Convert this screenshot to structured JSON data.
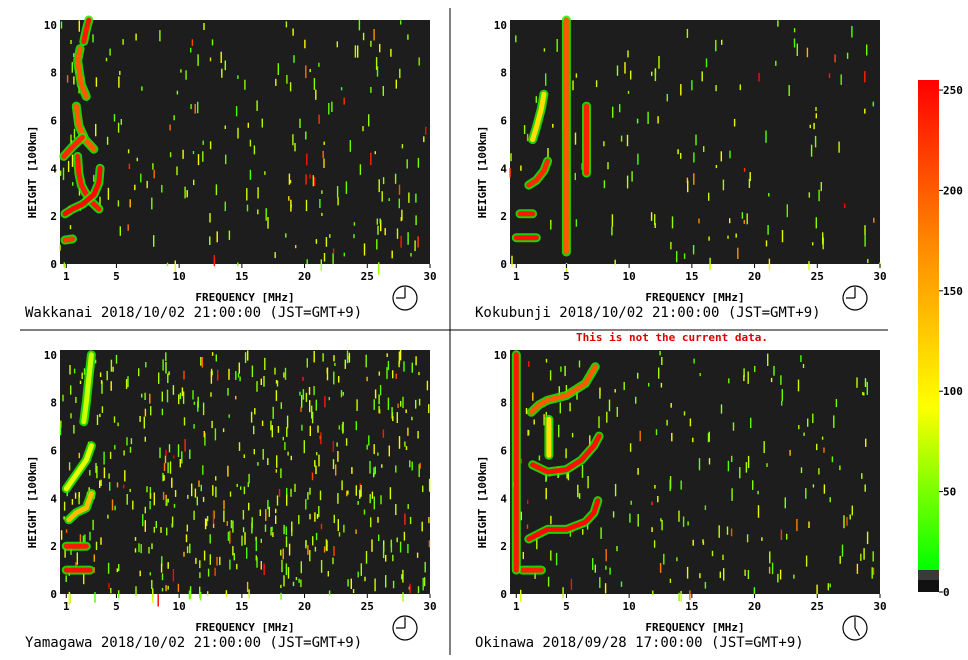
{
  "warning": "This is not the current data.",
  "colorbar": {
    "ticks": [
      0,
      50,
      100,
      150,
      200,
      250
    ],
    "range": [
      0,
      255
    ],
    "colors": [
      "#000000",
      "#00ff00",
      "#ffff00",
      "#ff8800",
      "#ff0000"
    ]
  },
  "chart_data": [
    {
      "type": "heatmap",
      "station": "Wakkanai",
      "caption": "Wakkanai 2018/10/02 21:00:00 (JST=GMT+9)",
      "xlabel": "FREQUENCY [MHz]",
      "ylabel": "HEIGHT [100km]",
      "xlim": [
        0.5,
        30
      ],
      "ylim": [
        0,
        10.2
      ],
      "xticks": [
        1,
        5,
        10,
        15,
        20,
        25,
        30
      ],
      "yticks": [
        0,
        2,
        4,
        6,
        8,
        10
      ],
      "clock_hour": 21,
      "noise_density": 0.35,
      "traces": [
        {
          "points": [
            [
              3.6,
              2.3
            ],
            [
              3.0,
              2.6
            ],
            [
              2.5,
              3.0
            ],
            [
              2.2,
              3.3
            ],
            [
              2.0,
              3.8
            ],
            [
              1.9,
              4.5
            ]
          ],
          "level": 240
        },
        {
          "points": [
            [
              0.9,
              2.1
            ],
            [
              1.5,
              2.3
            ],
            [
              2.3,
              2.5
            ],
            [
              3.2,
              2.9
            ],
            [
              3.6,
              3.4
            ],
            [
              3.7,
              4.0
            ]
          ],
          "level": 250
        },
        {
          "points": [
            [
              3.2,
              4.8
            ],
            [
              2.5,
              5.2
            ],
            [
              2.0,
              5.8
            ],
            [
              1.8,
              6.6
            ]
          ],
          "level": 200
        },
        {
          "points": [
            [
              0.8,
              4.5
            ],
            [
              1.5,
              4.9
            ],
            [
              2.3,
              5.3
            ]
          ],
          "level": 230
        },
        {
          "points": [
            [
              2.6,
              7.0
            ],
            [
              2.2,
              7.5
            ],
            [
              1.9,
              8.5
            ],
            [
              2.1,
              9.0
            ]
          ],
          "level": 200
        },
        {
          "points": [
            [
              2.4,
              9.3
            ],
            [
              2.6,
              9.8
            ],
            [
              2.8,
              10.2
            ]
          ],
          "level": 240
        },
        {
          "points": [
            [
              0.9,
              1.0
            ],
            [
              1.5,
              1.05
            ]
          ],
          "level": 220
        }
      ]
    },
    {
      "type": "heatmap",
      "station": "Kokubunji",
      "caption": "Kokubunji 2018/10/02 21:00:00 (JST=GMT+9)",
      "xlabel": "FREQUENCY [MHz]",
      "ylabel": "HEIGHT [100km]",
      "xlim": [
        0.5,
        30
      ],
      "ylim": [
        0,
        10.2
      ],
      "xticks": [
        1,
        5,
        10,
        15,
        20,
        25,
        30
      ],
      "yticks": [
        0,
        2,
        4,
        6,
        8,
        10
      ],
      "clock_hour": 21,
      "noise_density": 0.22,
      "traces": [
        {
          "points": [
            [
              1.0,
              1.1
            ],
            [
              2.6,
              1.1
            ]
          ],
          "level": 245
        },
        {
          "points": [
            [
              1.3,
              2.1
            ],
            [
              2.3,
              2.1
            ]
          ],
          "level": 240
        },
        {
          "points": [
            [
              2.0,
              3.3
            ],
            [
              2.6,
              3.5
            ],
            [
              3.2,
              3.9
            ],
            [
              3.5,
              4.3
            ]
          ],
          "level": 230
        },
        {
          "points": [
            [
              2.3,
              5.2
            ],
            [
              2.6,
              5.7
            ],
            [
              3.0,
              6.5
            ],
            [
              3.2,
              7.1
            ]
          ],
          "level": 120
        },
        {
          "points": [
            [
              5.0,
              10.2
            ],
            [
              5.0,
              0.5
            ]
          ],
          "level": 200
        },
        {
          "points": [
            [
              6.6,
              6.6
            ],
            [
              6.6,
              3.8
            ]
          ],
          "level": 235
        }
      ]
    },
    {
      "type": "heatmap",
      "station": "Yamagawa",
      "caption": "Yamagawa 2018/10/02 21:00:00 (JST=GMT+9)",
      "xlabel": "FREQUENCY [MHz]",
      "ylabel": "HEIGHT [100km]",
      "xlim": [
        0.5,
        30
      ],
      "ylim": [
        0,
        10.2
      ],
      "xticks": [
        1,
        5,
        10,
        15,
        20,
        25,
        30
      ],
      "yticks": [
        0,
        2,
        4,
        6,
        8,
        10
      ],
      "clock_hour": 21,
      "noise_density": 0.85,
      "traces": [
        {
          "points": [
            [
              1.0,
              1.0
            ],
            [
              2.9,
              1.0
            ]
          ],
          "level": 245
        },
        {
          "points": [
            [
              1.0,
              2.0
            ],
            [
              2.6,
              2.0
            ]
          ],
          "level": 240
        },
        {
          "points": [
            [
              1.2,
              3.1
            ],
            [
              1.8,
              3.4
            ],
            [
              2.6,
              3.6
            ],
            [
              3.0,
              4.2
            ]
          ],
          "level": 140
        },
        {
          "points": [
            [
              1.0,
              4.4
            ],
            [
              1.8,
              5.0
            ],
            [
              2.6,
              5.6
            ],
            [
              3.0,
              6.2
            ]
          ],
          "level": 90
        },
        {
          "points": [
            [
              2.4,
              7.2
            ],
            [
              2.6,
              8.0
            ],
            [
              2.8,
              9.0
            ],
            [
              3.0,
              10.0
            ]
          ],
          "level": 80
        }
      ]
    },
    {
      "type": "heatmap",
      "station": "Okinawa",
      "caption": "Okinawa 2018/09/28 17:00:00 (JST=GMT+9)",
      "xlabel": "FREQUENCY [MHz]",
      "ylabel": "HEIGHT [100km]",
      "xlim": [
        0.5,
        30
      ],
      "ylim": [
        0,
        10.2
      ],
      "xticks": [
        1,
        5,
        10,
        15,
        20,
        25,
        30
      ],
      "yticks": [
        0,
        2,
        4,
        6,
        8,
        10
      ],
      "clock_hour": 17,
      "noise_density": 0.35,
      "traces": [
        {
          "points": [
            [
              1.5,
              1.0
            ],
            [
              3.0,
              1.0
            ]
          ],
          "level": 235
        },
        {
          "points": [
            [
              1.0,
              10.0
            ],
            [
              1.0,
              1.0
            ]
          ],
          "level": 240
        },
        {
          "points": [
            [
              2.0,
              2.3
            ],
            [
              3.5,
              2.7
            ],
            [
              5.0,
              2.7
            ],
            [
              6.5,
              3.0
            ],
            [
              7.2,
              3.4
            ],
            [
              7.5,
              3.9
            ]
          ],
          "level": 250
        },
        {
          "points": [
            [
              2.3,
              5.4
            ],
            [
              3.5,
              5.1
            ],
            [
              5.0,
              5.2
            ],
            [
              6.2,
              5.6
            ],
            [
              7.2,
              6.2
            ],
            [
              7.6,
              6.6
            ]
          ],
          "level": 245
        },
        {
          "points": [
            [
              2.2,
              7.6
            ],
            [
              2.8,
              7.9
            ],
            [
              3.5,
              8.1
            ],
            [
              5.0,
              8.3
            ],
            [
              6.5,
              8.8
            ],
            [
              7.3,
              9.5
            ]
          ],
          "level": 200
        },
        {
          "points": [
            [
              3.6,
              5.8
            ],
            [
              3.6,
              7.3
            ]
          ],
          "level": 120
        }
      ]
    }
  ]
}
